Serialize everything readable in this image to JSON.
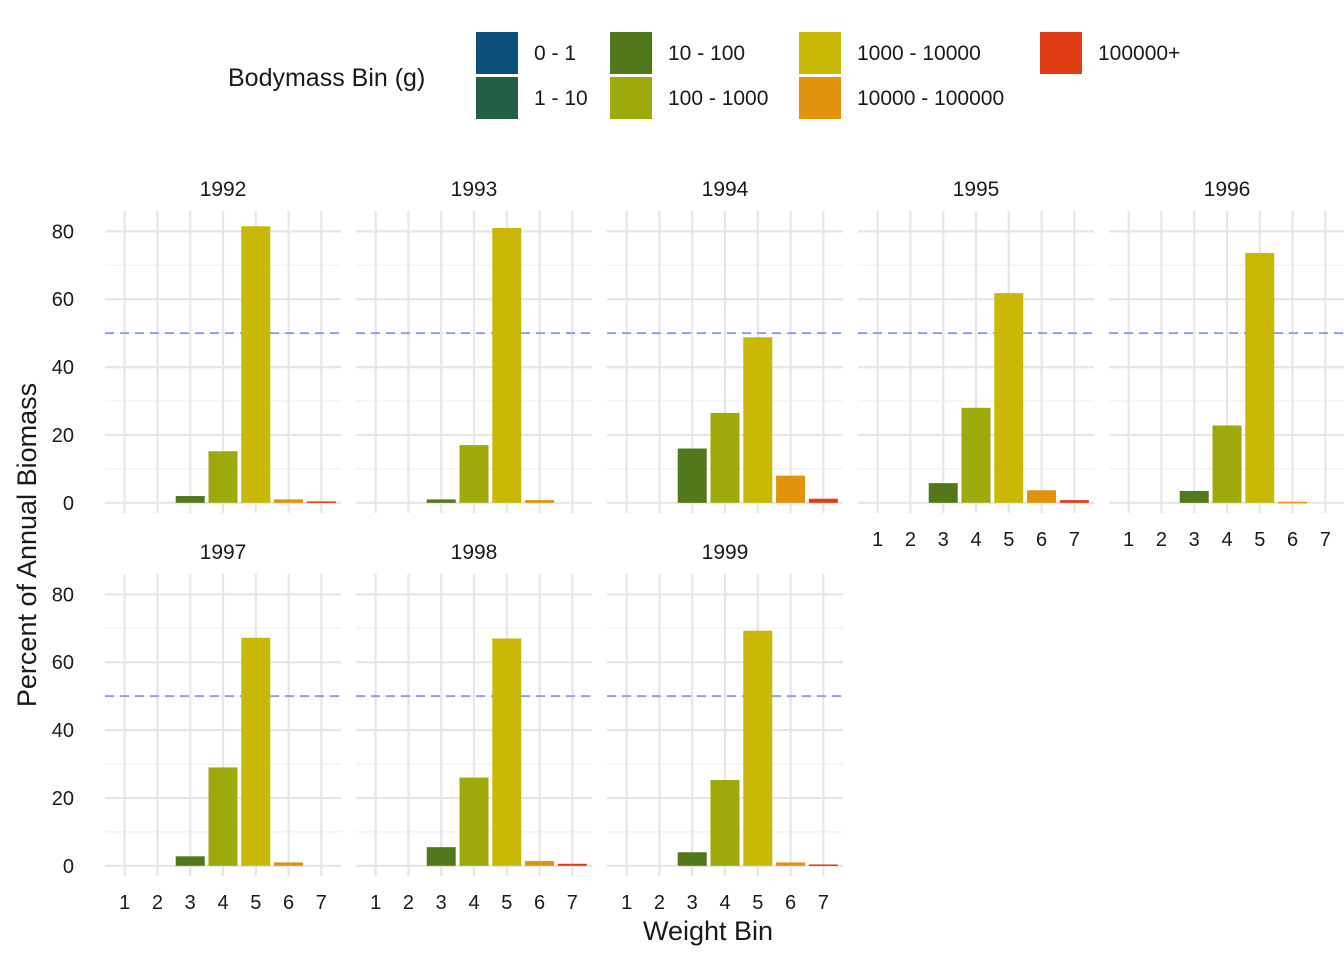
{
  "chart_data": {
    "type": "bar",
    "facet_by": "year",
    "xlabel": "Weight Bin",
    "ylabel": "Percent of Annual Biomass",
    "ylim": [
      -3,
      86
    ],
    "y_ticks": [
      0,
      20,
      40,
      60,
      80
    ],
    "categories": [
      "1",
      "2",
      "3",
      "4",
      "5",
      "6",
      "7"
    ],
    "reference_line": {
      "y": 50,
      "style": "dashed",
      "color": "#8fa2e0"
    },
    "grid": true,
    "legend": {
      "title": "Bodymass Bin (g)",
      "position": "top",
      "items": [
        {
          "label": "0 - 1",
          "color": "#0b4f7a"
        },
        {
          "label": "1 - 10",
          "color": "#245e45"
        },
        {
          "label": "10 - 100",
          "color": "#52781c"
        },
        {
          "label": "100 - 1000",
          "color": "#9eaa0a"
        },
        {
          "label": "1000 - 10000",
          "color": "#c9b906"
        },
        {
          "label": "10000 - 100000",
          "color": "#e3920c"
        },
        {
          "label": "100000+",
          "color": "#e03c14"
        }
      ]
    },
    "panels": [
      {
        "year": "1992",
        "values": [
          0,
          0,
          2.0,
          15.2,
          81.5,
          1.0,
          0.4
        ]
      },
      {
        "year": "1993",
        "values": [
          0,
          0,
          1.0,
          17.0,
          81.0,
          0.8,
          0
        ]
      },
      {
        "year": "1994",
        "values": [
          0,
          0,
          16.0,
          26.5,
          48.8,
          8.0,
          1.2
        ]
      },
      {
        "year": "1995",
        "values": [
          0,
          0,
          5.8,
          28.0,
          61.8,
          3.7,
          0.8
        ]
      },
      {
        "year": "1996",
        "values": [
          0,
          0,
          3.5,
          22.8,
          73.6,
          0.3,
          0
        ]
      },
      {
        "year": "1997",
        "values": [
          0,
          0,
          2.8,
          29.0,
          67.2,
          1.0,
          0
        ]
      },
      {
        "year": "1998",
        "values": [
          0,
          0,
          5.5,
          26.0,
          67.0,
          1.4,
          0.6
        ]
      },
      {
        "year": "1999",
        "values": [
          0,
          0,
          4.0,
          25.3,
          69.3,
          1.0,
          0.4
        ]
      }
    ]
  }
}
